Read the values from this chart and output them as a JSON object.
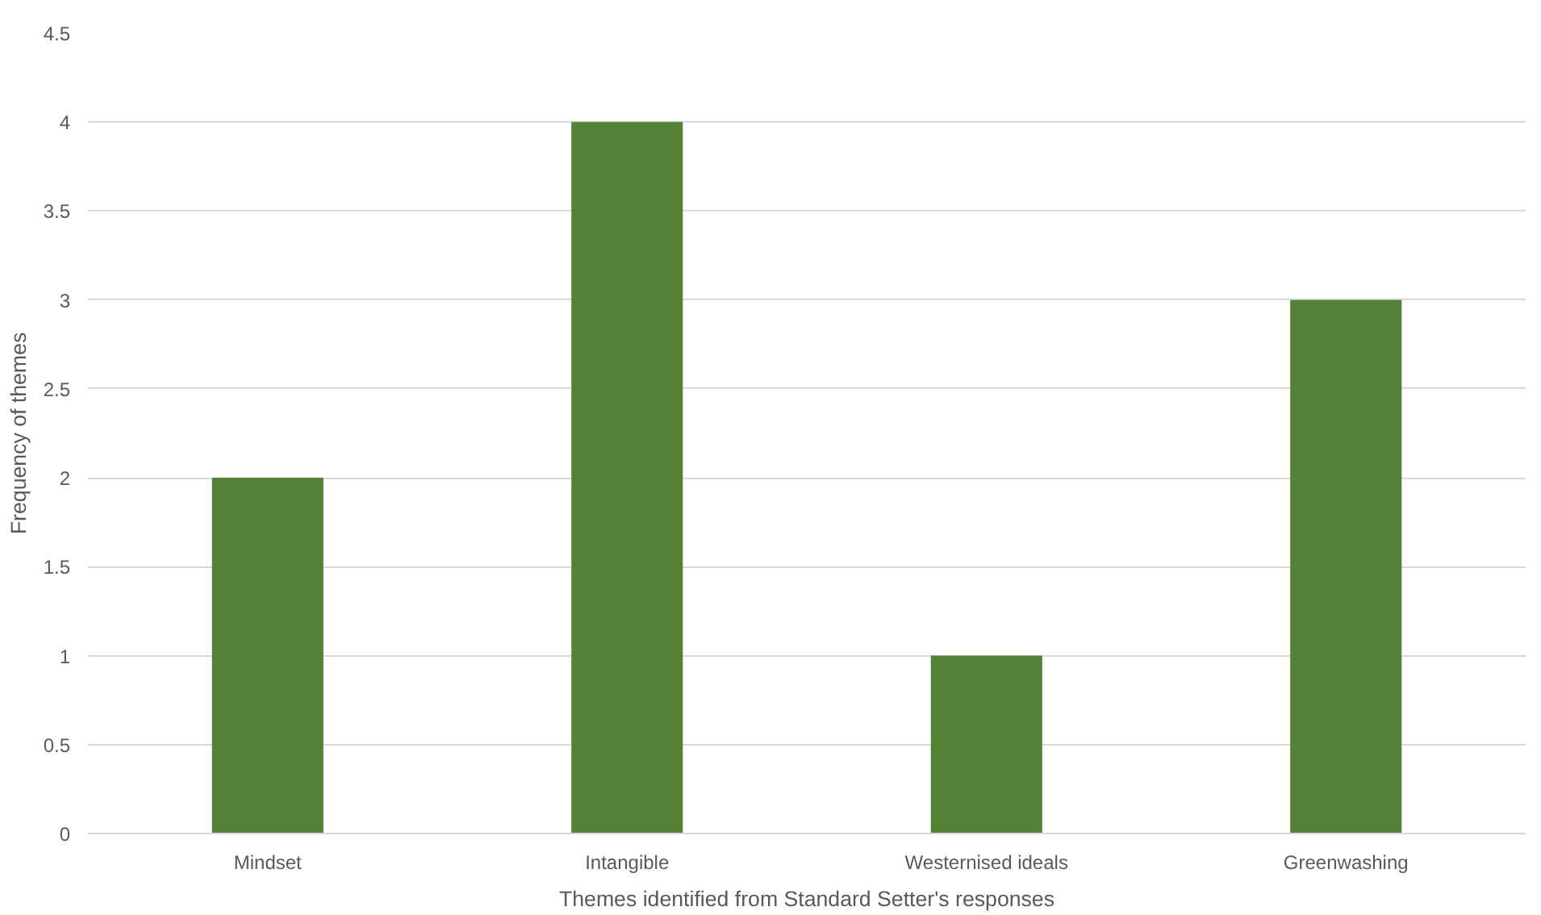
{
  "chart_data": {
    "type": "bar",
    "xlabel": "Themes identified from Standard Setter's responses",
    "ylabel": "Frequency of themes",
    "categories": [
      "Mindset",
      "Intangible",
      "Westernised ideals",
      "Greenwashing"
    ],
    "values": [
      2,
      4,
      1,
      3
    ],
    "color": "#538135",
    "ylim": [
      0,
      4.5
    ],
    "yticks": [
      0,
      0.5,
      1,
      1.5,
      2,
      2.5,
      3,
      3.5,
      4,
      4.5
    ],
    "grid": "y"
  }
}
